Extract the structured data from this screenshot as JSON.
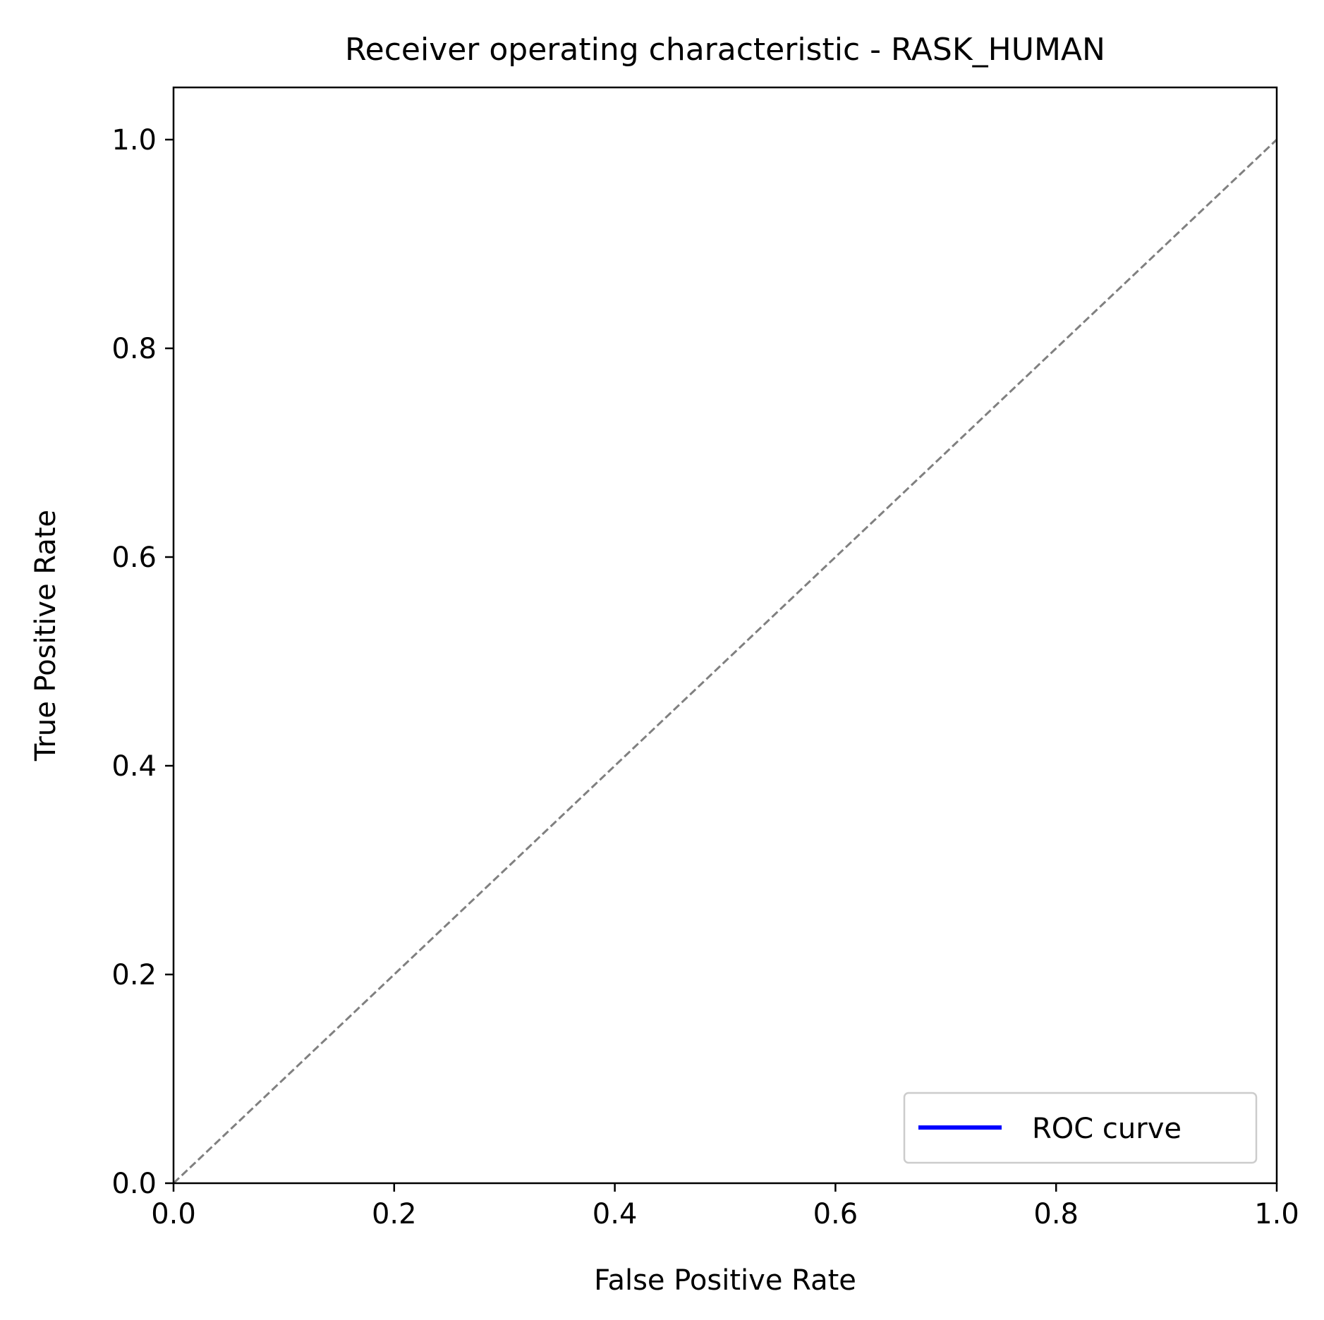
{
  "chart_data": {
    "type": "line",
    "title": "Receiver operating characteristic - RASK_HUMAN",
    "xlabel": "False Positive Rate",
    "ylabel": "True Positive Rate",
    "xlim": [
      0.0,
      1.0
    ],
    "ylim": [
      0.0,
      1.05
    ],
    "xticks": [
      0.0,
      0.2,
      0.4,
      0.6,
      0.8,
      1.0
    ],
    "yticks": [
      0.0,
      0.2,
      0.4,
      0.6,
      0.8,
      1.0
    ],
    "xtick_labels": [
      "0.0",
      "0.2",
      "0.4",
      "0.6",
      "0.8",
      "1.0"
    ],
    "ytick_labels": [
      "0.0",
      "0.2",
      "0.4",
      "0.6",
      "0.8",
      "1.0"
    ],
    "grid": false,
    "legend_placement": "lower-right",
    "series": [
      {
        "name": "ROC curve",
        "color": "#0000ff",
        "style": "solid",
        "x": [],
        "y": []
      },
      {
        "color": "#808080",
        "style": "dashed",
        "x": [
          0.0,
          1.0
        ],
        "y": [
          0.0,
          1.0
        ]
      }
    ]
  }
}
